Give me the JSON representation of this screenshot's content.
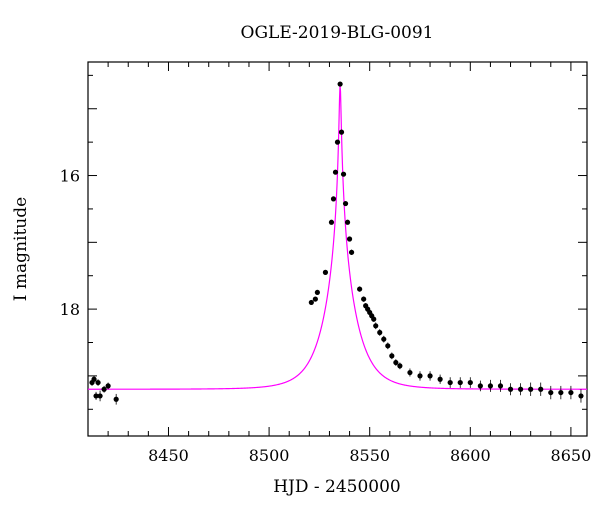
{
  "chart_data": {
    "type": "scatter",
    "title": "OGLE-2019-BLG-0091",
    "xlabel": "HJD - 2450000",
    "ylabel": "I magnitude",
    "xlim": [
      8410,
      8658
    ],
    "ylim": [
      19.9,
      14.3
    ],
    "y_inverted": true,
    "x_ticks": [
      8450,
      8500,
      8550,
      8600,
      8650
    ],
    "y_ticks": [
      16,
      18
    ],
    "colors": {
      "model": "#ff00ff",
      "points": "#000000",
      "axes": "#000000"
    },
    "model": {
      "t0": 8535.3,
      "baseline": 19.2,
      "peak": 14.63,
      "u0": 0.035,
      "tE": 12.0
    },
    "series": [
      {
        "x": [
          8412,
          8413,
          8414,
          8415,
          8416,
          8418,
          8420,
          8424,
          8521,
          8523,
          8524,
          8528,
          8531,
          8532,
          8533,
          8534,
          8535.3,
          8536,
          8537,
          8538,
          8539,
          8540,
          8541,
          8545,
          8547,
          8548,
          8549,
          8550,
          8551,
          8552,
          8553,
          8555,
          8557,
          8559,
          8561,
          8563,
          8565,
          8570,
          8575,
          8580,
          8585,
          8590,
          8595,
          8600,
          8605,
          8610,
          8615,
          8620,
          8625,
          8630,
          8635,
          8640,
          8645,
          8650,
          8655
        ],
        "y": [
          19.1,
          19.05,
          19.3,
          19.1,
          19.3,
          19.2,
          19.15,
          19.35,
          17.9,
          17.85,
          17.75,
          17.45,
          16.7,
          16.35,
          15.95,
          15.5,
          14.63,
          15.35,
          15.98,
          16.42,
          16.7,
          16.95,
          17.15,
          17.7,
          17.85,
          17.95,
          18.0,
          18.05,
          18.1,
          18.15,
          18.25,
          18.35,
          18.45,
          18.55,
          18.7,
          18.8,
          18.85,
          18.95,
          19.0,
          19.0,
          19.05,
          19.1,
          19.1,
          19.1,
          19.15,
          19.15,
          19.15,
          19.2,
          19.2,
          19.2,
          19.2,
          19.25,
          19.25,
          19.25,
          19.3
        ],
        "yerr": [
          0.05,
          0.05,
          0.06,
          0.05,
          0.08,
          0.05,
          0.05,
          0.08,
          0.03,
          0.03,
          0.03,
          0.03,
          0.02,
          0.02,
          0.02,
          0.02,
          0.02,
          0.02,
          0.02,
          0.02,
          0.03,
          0.03,
          0.04,
          0.04,
          0.04,
          0.04,
          0.04,
          0.04,
          0.04,
          0.04,
          0.05,
          0.05,
          0.05,
          0.05,
          0.05,
          0.05,
          0.05,
          0.06,
          0.07,
          0.07,
          0.07,
          0.08,
          0.08,
          0.08,
          0.08,
          0.09,
          0.09,
          0.09,
          0.09,
          0.1,
          0.1,
          0.1,
          0.1,
          0.1,
          0.1
        ]
      }
    ]
  }
}
